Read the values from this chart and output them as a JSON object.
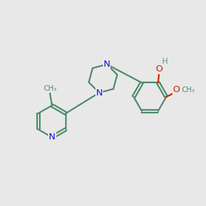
{
  "bg_color": "#e8e8e8",
  "bond_color": "#4a8a6a",
  "bond_width": 1.6,
  "N_color": "#1010dd",
  "O_color": "#cc2200",
  "H_color": "#6a9a8a",
  "C_color": "#4a8a6a",
  "font_size": 8.5,
  "fig_size": [
    3.0,
    3.0
  ],
  "dpi": 100,
  "xlim": [
    0,
    10
  ],
  "ylim": [
    0,
    10
  ]
}
